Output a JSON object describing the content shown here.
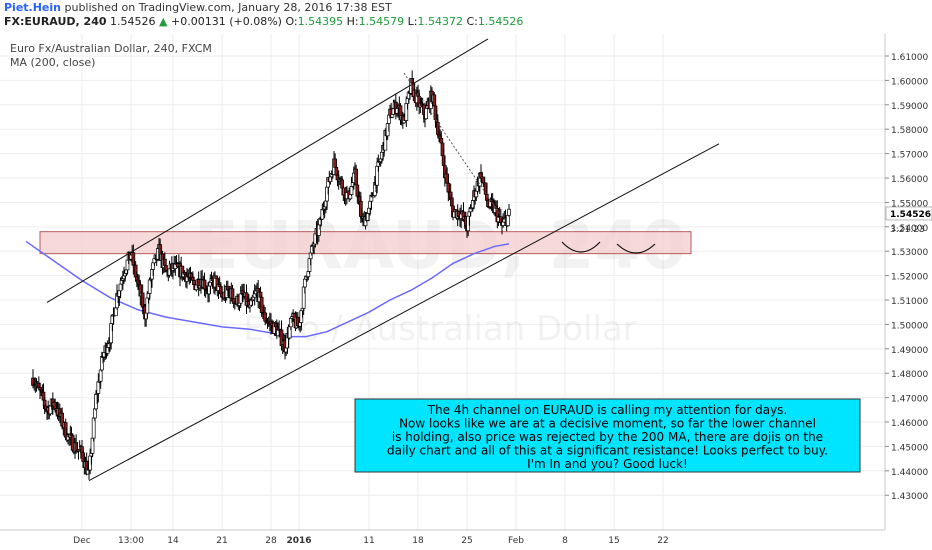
{
  "header": {
    "author": "Piet.Hein",
    "published": "published on TradingView.com, January 28, 2016 17:38 EST",
    "symbol": "FX:EURAUD, 240",
    "last": "1.54526",
    "change_arrow": "▲",
    "change": "+0.00131 (+0.08%)",
    "o_label": "O:",
    "o_val": "1.54395",
    "h_label": "H:",
    "h_val": "1.54579",
    "l_label": "L:",
    "l_val": "1.54372",
    "c_label": "C:",
    "c_val": "1.54526"
  },
  "chart_data": {
    "type": "candlestick",
    "title": "Euro Fx/Australian Dollar, 240, FXCM",
    "subtitle": "MA (200, close)",
    "watermark_symbol": "EURAUD, 240",
    "watermark_name": "Euro / Australian Dollar",
    "ylim": [
      1.425,
      1.615
    ],
    "y_ticks": [
      "1.61000",
      "1.60000",
      "1.59000",
      "1.58000",
      "1.57000",
      "1.56000",
      "1.55000",
      "1.54000",
      "1.53000",
      "1.52000",
      "1.51000",
      "1.50000",
      "1.49000",
      "1.48000",
      "1.47000",
      "1.46000",
      "1.45000",
      "1.44000",
      "1.43000"
    ],
    "x_ticks": [
      {
        "label": "Dec",
        "day": 0
      },
      {
        "label": "13:00",
        "day": 7
      },
      {
        "label": "14",
        "day": 13
      },
      {
        "label": "21",
        "day": 20
      },
      {
        "label": "28",
        "day": 27
      },
      {
        "label": "2016",
        "day": 31
      },
      {
        "label": "11",
        "day": 41
      },
      {
        "label": "18",
        "day": 48
      },
      {
        "label": "25",
        "day": 55
      },
      {
        "label": "Feb",
        "day": 62
      },
      {
        "label": "8",
        "day": 69
      },
      {
        "label": "15",
        "day": 76
      },
      {
        "label": "22",
        "day": 83
      }
    ],
    "price_path": [
      [
        -7,
        1.478
      ],
      [
        -6,
        1.472
      ],
      [
        -5,
        1.465
      ],
      [
        -4,
        1.468
      ],
      [
        -3,
        1.461
      ],
      [
        -2,
        1.454
      ],
      [
        -1,
        1.45
      ],
      [
        0,
        1.447
      ],
      [
        1,
        1.438
      ],
      [
        2,
        1.47
      ],
      [
        3,
        1.487
      ],
      [
        4,
        1.495
      ],
      [
        5,
        1.512
      ],
      [
        6,
        1.522
      ],
      [
        7,
        1.529
      ],
      [
        8,
        1.516
      ],
      [
        9,
        1.504
      ],
      [
        10,
        1.522
      ],
      [
        11,
        1.53
      ],
      [
        12,
        1.521
      ],
      [
        13,
        1.523
      ],
      [
        14,
        1.522
      ],
      [
        15,
        1.52
      ],
      [
        16,
        1.516
      ],
      [
        17,
        1.519
      ],
      [
        18,
        1.514
      ],
      [
        19,
        1.518
      ],
      [
        20,
        1.511
      ],
      [
        21,
        1.514
      ],
      [
        22,
        1.509
      ],
      [
        23,
        1.512
      ],
      [
        24,
        1.506
      ],
      [
        25,
        1.514
      ],
      [
        26,
        1.503
      ],
      [
        27,
        1.5
      ],
      [
        28,
        1.497
      ],
      [
        29,
        1.491
      ],
      [
        30,
        1.502
      ],
      [
        31,
        1.499
      ],
      [
        32,
        1.52
      ],
      [
        33,
        1.532
      ],
      [
        34,
        1.541
      ],
      [
        35,
        1.556
      ],
      [
        36,
        1.566
      ],
      [
        37,
        1.558
      ],
      [
        38,
        1.552
      ],
      [
        39,
        1.561
      ],
      [
        40,
        1.542
      ],
      [
        41,
        1.546
      ],
      [
        42,
        1.56
      ],
      [
        43,
        1.572
      ],
      [
        44,
        1.586
      ],
      [
        45,
        1.59
      ],
      [
        46,
        1.583
      ],
      [
        47,
        1.598
      ],
      [
        48,
        1.591
      ],
      [
        49,
        1.586
      ],
      [
        50,
        1.594
      ],
      [
        51,
        1.578
      ],
      [
        52,
        1.56
      ],
      [
        53,
        1.546
      ],
      [
        54,
        1.546
      ],
      [
        55,
        1.54
      ],
      [
        56,
        1.553
      ],
      [
        57,
        1.562
      ],
      [
        58,
        1.549
      ],
      [
        59,
        1.547
      ],
      [
        60,
        1.54
      ],
      [
        61,
        1.545
      ]
    ],
    "ma200": [
      [
        -8,
        1.534
      ],
      [
        -4,
        1.526
      ],
      [
        0,
        1.518
      ],
      [
        4,
        1.511
      ],
      [
        8,
        1.506
      ],
      [
        12,
        1.503
      ],
      [
        16,
        1.501
      ],
      [
        20,
        1.499
      ],
      [
        24,
        1.498
      ],
      [
        28,
        1.496
      ],
      [
        30,
        1.495
      ],
      [
        32,
        1.495
      ],
      [
        35,
        1.497
      ],
      [
        38,
        1.501
      ],
      [
        41,
        1.505
      ],
      [
        44,
        1.51
      ],
      [
        47,
        1.514
      ],
      [
        50,
        1.519
      ],
      [
        53,
        1.525
      ],
      [
        56,
        1.529
      ],
      [
        59,
        1.532
      ],
      [
        61,
        1.533
      ]
    ],
    "last_price": "1.54526",
    "countdown": "3:21:23",
    "channel_upper": [
      [
        -5,
        1.509
      ],
      [
        58,
        1.617
      ]
    ],
    "channel_lower": [
      [
        1,
        1.436
      ],
      [
        91,
        1.574
      ]
    ],
    "resistance_zone": {
      "low": 1.529,
      "high": 1.538,
      "day_start": -6,
      "day_end": 87
    },
    "dotted_trend": [
      [
        46,
        1.603
      ],
      [
        60,
        1.544
      ]
    ],
    "annotation": "The 4h channel on EURAUD is calling my attention for days.\nNow looks like we are at a decisive moment, so far the lower channel\nis holding, also price was rejected by the 200 MA, there are dojis on the\ndaily chart and all of this at a significant resistance! Looks perfect to buy.\nI'm In and you? Good luck!"
  },
  "colors": {
    "bull": "#ffffff",
    "bear": "#8b1a1a",
    "wick": "#000000",
    "ma": "#6a6aff",
    "zone_fill": "#f4cccc",
    "zone_border": "#b85c5c",
    "note_fill": "#00e5ff",
    "last_label_bg": "#ffffff",
    "grid": "#eeeeee"
  }
}
